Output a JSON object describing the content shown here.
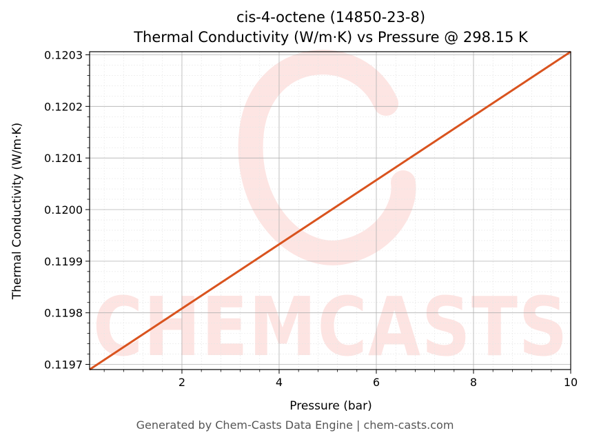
{
  "chart_data": {
    "type": "line",
    "title": "cis-4-octene (14850-23-8)",
    "subtitle": "Thermal Conductivity (W/m·K) vs Pressure @ 298.15 K",
    "xlabel": "Pressure (bar)",
    "ylabel": "Thermal Conductivity (W/m·K)",
    "xlim": [
      0.1,
      10
    ],
    "ylim": [
      0.11969,
      0.120306
    ],
    "x_ticks": [
      2,
      4,
      6,
      8,
      10
    ],
    "x_tick_labels": [
      "2",
      "4",
      "6",
      "8",
      "10"
    ],
    "y_ticks": [
      0.1197,
      0.1198,
      0.1199,
      0.12,
      0.1201,
      0.1202,
      0.1203
    ],
    "y_tick_labels": [
      "0.1197",
      "0.1198",
      "0.1199",
      "0.1200",
      "0.1201",
      "0.1202",
      "0.1203"
    ],
    "grid": true,
    "series": [
      {
        "color": "#d9531e",
        "x": [
          0.1,
          10
        ],
        "y": [
          0.11969,
          0.120306
        ]
      }
    ]
  },
  "watermark": {
    "text": "CHEMCASTS",
    "color": "#fde0de"
  },
  "footer": "Generated by Chem-Casts Data Engine | chem-casts.com"
}
